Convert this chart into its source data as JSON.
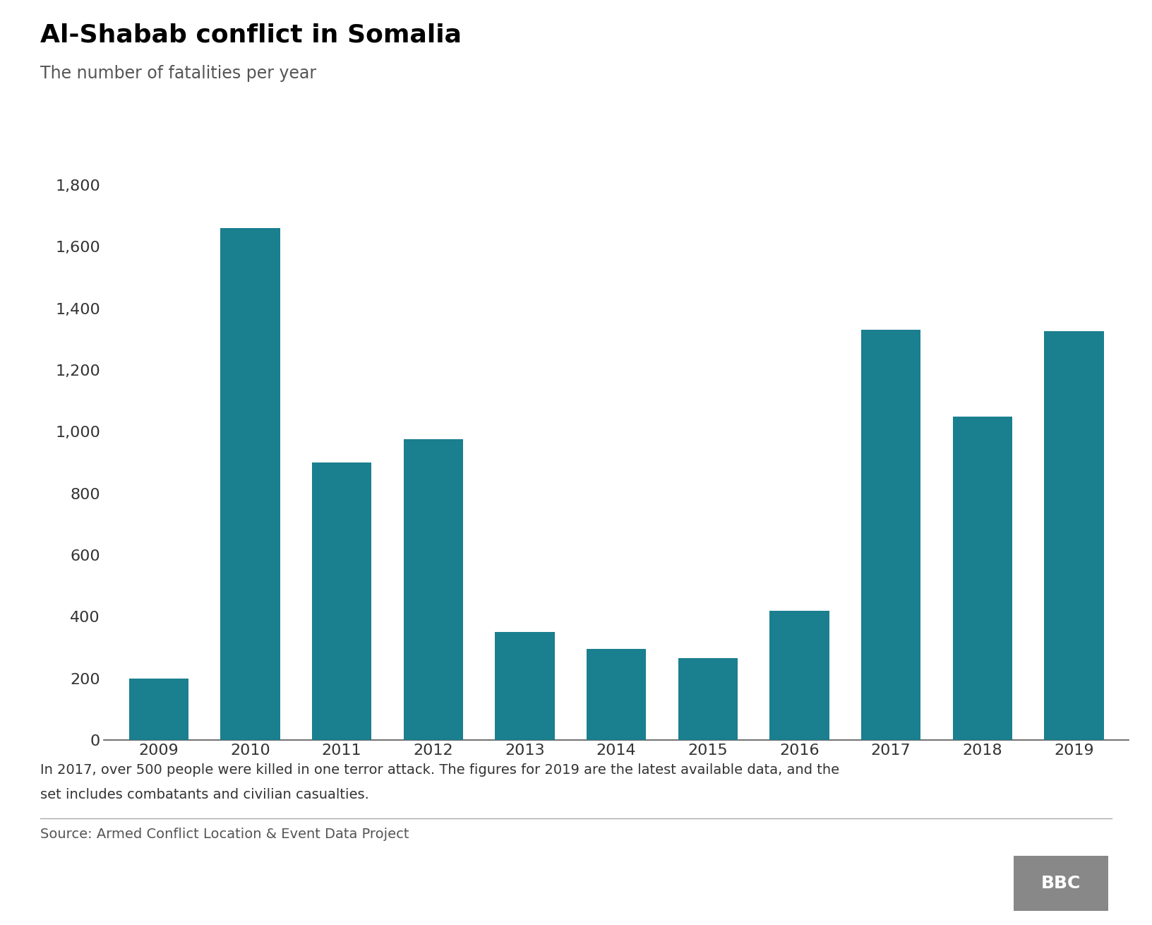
{
  "title": "Al-Shabab conflict in Somalia",
  "subtitle": "The number of fatalities per year",
  "years": [
    2009,
    2010,
    2011,
    2012,
    2013,
    2014,
    2015,
    2016,
    2017,
    2018,
    2019
  ],
  "values": [
    200,
    1660,
    900,
    975,
    350,
    295,
    265,
    420,
    1330,
    1050,
    1325
  ],
  "bar_color": "#1a7f8e",
  "background_color": "#ffffff",
  "ylim": [
    0,
    1800
  ],
  "yticks": [
    0,
    200,
    400,
    600,
    800,
    1000,
    1200,
    1400,
    1600,
    1800
  ],
  "note_line1": "In 2017, over 500 people were killed in one terror attack. The figures for 2019 are the latest available data, and the",
  "note_line2": "set includes combatants and civilian casualties.",
  "source": "Source: Armed Conflict Location & Event Data Project",
  "title_fontsize": 26,
  "subtitle_fontsize": 17,
  "tick_fontsize": 16,
  "note_fontsize": 14,
  "source_fontsize": 14
}
